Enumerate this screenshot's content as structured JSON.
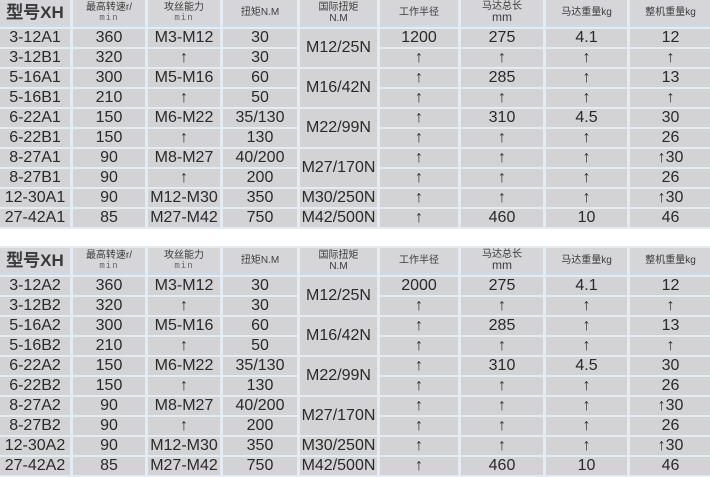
{
  "headers": {
    "model": "型号XH",
    "max_speed": "最高转速r/",
    "max_speed_unit": "min",
    "tapping": "攻丝能力",
    "tapping_unit": "min",
    "torque": "扭矩N.M",
    "intl_torque": "国际扭矩",
    "intl_torque_unit": "N.M",
    "radius": "工作半径",
    "motor_length": "马达总长",
    "motor_length_unit": "mm",
    "motor_weight": "马达重量kg",
    "machine_weight": "整机重量kg"
  },
  "arrow_symbol": "↑",
  "tables": [
    {
      "rows": [
        {
          "model": "3-12A1",
          "speed": "360",
          "tapping": "M3-M12",
          "torque": "30",
          "radius": "1200",
          "length": "275",
          "motor_weight": "4.1",
          "weight": "12"
        },
        {
          "model": "3-12B1",
          "speed": "320",
          "tapping": "↑",
          "torque": "30",
          "radius": "↑",
          "length": "↑",
          "motor_weight": "↑",
          "weight": "↑"
        },
        {
          "model": "5-16A1",
          "speed": "300",
          "tapping": "M5-M16",
          "torque": "60",
          "radius": "↑",
          "length": "285",
          "motor_weight": "↑",
          "weight": "13"
        },
        {
          "model": "5-16B1",
          "speed": "210",
          "tapping": "↑",
          "torque": "50",
          "radius": "↑",
          "length": "↑",
          "motor_weight": "↑",
          "weight": "↑"
        },
        {
          "model": "6-22A1",
          "speed": "150",
          "tapping": "M6-M22",
          "torque": "35/130",
          "radius": "↑",
          "length": "310",
          "motor_weight": "4.5",
          "weight": "30"
        },
        {
          "model": "6-22B1",
          "speed": "150",
          "tapping": "↑",
          "torque": "130",
          "radius": "↑",
          "length": "↑",
          "motor_weight": "↑",
          "weight": "26"
        },
        {
          "model": "8-27A1",
          "speed": "90",
          "tapping": "M8-M27",
          "torque": "40/200",
          "radius": "↑",
          "length": "↑",
          "motor_weight": "↑",
          "weight": "↑30"
        },
        {
          "model": "8-27B1",
          "speed": "90",
          "tapping": "↑",
          "torque": "200",
          "radius": "↑",
          "length": "↑",
          "motor_weight": "↑",
          "weight": "26"
        },
        {
          "model": "12-30A1",
          "speed": "90",
          "tapping": "M12-M30",
          "torque": "350",
          "radius": "↑",
          "length": "↑",
          "motor_weight": "↑",
          "weight": "↑30"
        },
        {
          "model": "27-42A1",
          "speed": "85",
          "tapping": "M27-M42",
          "torque": "750",
          "radius": "↑",
          "length": "460",
          "motor_weight": "10",
          "weight": "46"
        }
      ],
      "intl_torque": [
        {
          "value": "M12/25N",
          "rows": 2
        },
        {
          "value": "M16/42N",
          "rows": 2
        },
        {
          "value": "M22/99N",
          "rows": 2
        },
        {
          "value": "M27/170N",
          "rows": 2
        },
        {
          "value": "M30/250N",
          "rows": 1
        },
        {
          "value": "M42/500N",
          "rows": 1
        }
      ]
    },
    {
      "rows": [
        {
          "model": "3-12A2",
          "speed": "360",
          "tapping": "M3-M12",
          "torque": "30",
          "radius": "2000",
          "length": "275",
          "motor_weight": "4.1",
          "weight": "12"
        },
        {
          "model": "3-12B2",
          "speed": "320",
          "tapping": "↑",
          "torque": "30",
          "radius": "↑",
          "length": "↑",
          "motor_weight": "↑",
          "weight": "↑"
        },
        {
          "model": "5-16A2",
          "speed": "300",
          "tapping": "M5-M16",
          "torque": "60",
          "radius": "↑",
          "length": "285",
          "motor_weight": "↑",
          "weight": "13"
        },
        {
          "model": "5-16B2",
          "speed": "210",
          "tapping": "↑",
          "torque": "50",
          "radius": "↑",
          "length": "↑",
          "motor_weight": "↑",
          "weight": "↑"
        },
        {
          "model": "6-22A2",
          "speed": "150",
          "tapping": "M6-M22",
          "torque": "35/130",
          "radius": "↑",
          "length": "310",
          "motor_weight": "4.5",
          "weight": "30"
        },
        {
          "model": "6-22B2",
          "speed": "150",
          "tapping": "↑",
          "torque": "130",
          "radius": "↑",
          "length": "↑",
          "motor_weight": "↑",
          "weight": "26"
        },
        {
          "model": "8-27A2",
          "speed": "90",
          "tapping": "M8-M27",
          "torque": "40/200",
          "radius": "↑",
          "length": "↑",
          "motor_weight": "↑",
          "weight": "↑30"
        },
        {
          "model": "8-27B2",
          "speed": "90",
          "tapping": "↑",
          "torque": "200",
          "radius": "↑",
          "length": "↑",
          "motor_weight": "↑",
          "weight": "26"
        },
        {
          "model": "12-30A2",
          "speed": "90",
          "tapping": "M12-M30",
          "torque": "350",
          "radius": "↑",
          "length": "↑",
          "motor_weight": "↑",
          "weight": "↑30"
        },
        {
          "model": "27-42A2",
          "speed": "85",
          "tapping": "M27-M42",
          "torque": "750",
          "radius": "↑",
          "length": "460",
          "motor_weight": "10",
          "weight": "46"
        }
      ],
      "intl_torque": [
        {
          "value": "M12/25N",
          "rows": 2
        },
        {
          "value": "M16/42N",
          "rows": 2
        },
        {
          "value": "M22/99N",
          "rows": 2
        },
        {
          "value": "M27/170N",
          "rows": 2
        },
        {
          "value": "M30/250N",
          "rows": 1
        },
        {
          "value": "M42/500N",
          "rows": 1
        }
      ]
    }
  ]
}
